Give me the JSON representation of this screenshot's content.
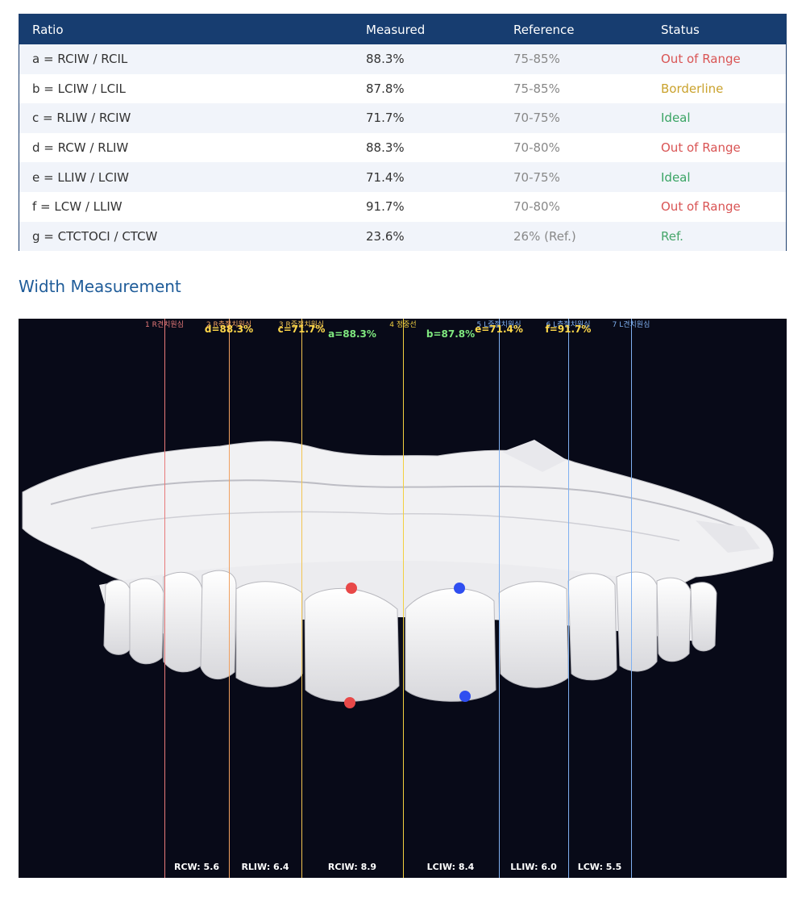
{
  "table": {
    "headers": [
      "Ratio",
      "Measured",
      "Reference",
      "Status"
    ],
    "rows": [
      {
        "ratio": "a = RCIW / RCIL",
        "measured": "88.3%",
        "reference": "75-85%",
        "status": "Out of Range"
      },
      {
        "ratio": "b = LCIW / LCIL",
        "measured": "87.8%",
        "reference": "75-85%",
        "status": "Borderline"
      },
      {
        "ratio": "c = RLIW / RCIW",
        "measured": "71.7%",
        "reference": "70-75%",
        "status": "Ideal"
      },
      {
        "ratio": "d = RCW / RLIW",
        "measured": "88.3%",
        "reference": "70-80%",
        "status": "Out of Range"
      },
      {
        "ratio": "e = LLIW / LCIW",
        "measured": "71.4%",
        "reference": "70-75%",
        "status": "Ideal"
      },
      {
        "ratio": "f = LCW / LLIW",
        "measured": "91.7%",
        "reference": "70-80%",
        "status": "Out of Range"
      },
      {
        "ratio": "g = CTCTOCI / CTCW",
        "measured": "23.6%",
        "reference": "26% (Ref.)",
        "status": "Ref."
      }
    ]
  },
  "section_title": "Width Measurement",
  "viewer": {
    "lines": [
      {
        "label": "1 R견치원심",
        "color": "#e87a7a"
      },
      {
        "label": "2 R측절치원심",
        "color": "#f0a060"
      },
      {
        "label": "3 R중절치원심",
        "color": "#f2c450"
      },
      {
        "label": "4 정중선",
        "color": "#f2d040"
      },
      {
        "label": "5 L중절치원심",
        "color": "#7fb0f0"
      },
      {
        "label": "6 L측절치원심",
        "color": "#7fb0f0"
      },
      {
        "label": "7 L견치원심",
        "color": "#7fb0f0"
      }
    ],
    "ratio_labels": [
      {
        "text": "d=88.3%",
        "color": "#ffd84a"
      },
      {
        "text": "c=71.7%",
        "color": "#ffd84a"
      },
      {
        "text": "a=88.3%",
        "color": "#7fe87f"
      },
      {
        "text": "b=87.8%",
        "color": "#7fe87f"
      },
      {
        "text": "e=71.4%",
        "color": "#ffd84a"
      },
      {
        "text": "f=91.7%",
        "color": "#ffd84a"
      }
    ],
    "width_labels": [
      "RCW: 5.6",
      "RLIW: 6.4",
      "RCIW: 8.9",
      "LCIW: 8.4",
      "LLIW: 6.0",
      "LCW: 5.5"
    ],
    "marker_colors": {
      "right": "#e84848",
      "left": "#2f4ef0"
    }
  }
}
